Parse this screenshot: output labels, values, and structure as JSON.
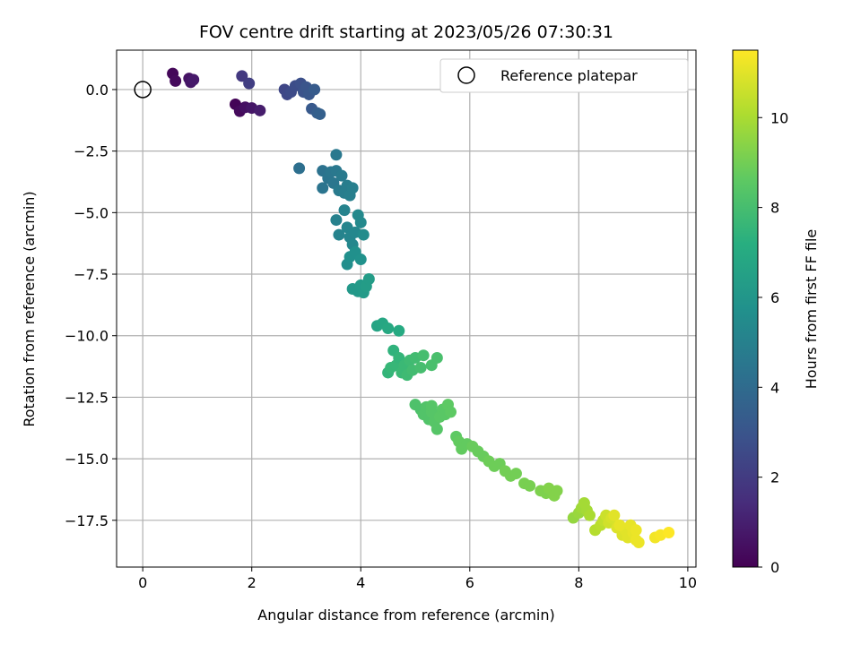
{
  "chart_data": {
    "type": "scatter",
    "title": "FOV centre drift starting at 2023/05/26 07:30:31",
    "xlabel": "Angular distance from reference (arcmin)",
    "ylabel": "Rotation from reference (arcmin)",
    "xlim": [
      -0.48,
      10.15
    ],
    "ylim": [
      -19.4,
      1.6
    ],
    "x_ticks": [
      0,
      2,
      4,
      6,
      8,
      10
    ],
    "x_tick_labels": [
      "0",
      "2",
      "4",
      "6",
      "8",
      "10"
    ],
    "y_ticks": [
      0.0,
      -2.5,
      -5.0,
      -7.5,
      -10.0,
      -12.5,
      -15.0,
      -17.5
    ],
    "y_tick_labels": [
      "0.0",
      "−2.5",
      "−5.0",
      "−7.5",
      "−10.0",
      "−12.5",
      "−15.0",
      "−17.5"
    ],
    "grid": true,
    "colormap": "viridis",
    "colorbar": {
      "label": "Hours from first FF file",
      "range": [
        0,
        11.5
      ],
      "ticks": [
        0,
        2,
        4,
        6,
        8,
        10
      ],
      "tick_labels": [
        "0",
        "2",
        "4",
        "6",
        "8",
        "10"
      ]
    },
    "legend": {
      "position": "top-right",
      "entries": [
        {
          "label": "Reference platepar",
          "marker": "open-circle"
        }
      ]
    },
    "reference_point": {
      "x": 0,
      "y": 0
    },
    "series": [
      {
        "points": [
          [
            0.55,
            0.65,
            0.2
          ],
          [
            0.6,
            0.35,
            0.3
          ],
          [
            0.85,
            0.45,
            0.6
          ],
          [
            0.88,
            0.3,
            0.7
          ],
          [
            0.93,
            0.4,
            0.8
          ],
          [
            1.7,
            -0.6,
            0.1
          ],
          [
            1.78,
            -0.88,
            0.3
          ],
          [
            1.88,
            -0.72,
            0.5
          ],
          [
            2.0,
            -0.75,
            0.7
          ],
          [
            2.15,
            -0.85,
            0.9
          ],
          [
            1.82,
            0.55,
            1.9
          ],
          [
            1.95,
            0.25,
            2.1
          ],
          [
            2.6,
            0.0,
            2.4
          ],
          [
            2.65,
            -0.2,
            2.5
          ],
          [
            2.72,
            -0.1,
            2.6
          ],
          [
            2.8,
            0.15,
            2.7
          ],
          [
            2.9,
            0.25,
            2.8
          ],
          [
            2.95,
            -0.1,
            2.9
          ],
          [
            3.0,
            0.1,
            3.0
          ],
          [
            3.05,
            -0.2,
            3.1
          ],
          [
            3.1,
            -0.78,
            3.2
          ],
          [
            3.15,
            0.0,
            3.3
          ],
          [
            3.2,
            -0.95,
            3.4
          ],
          [
            3.25,
            -1.0,
            3.5
          ],
          [
            2.87,
            -3.2,
            4.2
          ],
          [
            3.3,
            -3.3,
            4.3
          ],
          [
            3.3,
            -4.0,
            4.4
          ],
          [
            3.4,
            -3.6,
            4.4
          ],
          [
            3.45,
            -3.35,
            4.5
          ],
          [
            3.5,
            -3.8,
            4.5
          ],
          [
            3.55,
            -3.3,
            4.6
          ],
          [
            3.55,
            -2.65,
            4.6
          ],
          [
            3.6,
            -4.1,
            4.7
          ],
          [
            3.65,
            -3.5,
            4.7
          ],
          [
            3.7,
            -4.2,
            4.8
          ],
          [
            3.75,
            -3.9,
            4.8
          ],
          [
            3.8,
            -4.3,
            4.9
          ],
          [
            3.85,
            -4.0,
            4.9
          ],
          [
            3.55,
            -5.3,
            5.0
          ],
          [
            3.6,
            -5.9,
            5.1
          ],
          [
            3.7,
            -4.9,
            5.1
          ],
          [
            3.75,
            -5.6,
            5.2
          ],
          [
            3.8,
            -6.0,
            5.2
          ],
          [
            3.85,
            -6.3,
            5.3
          ],
          [
            3.9,
            -5.8,
            5.3
          ],
          [
            3.95,
            -5.1,
            5.4
          ],
          [
            4.0,
            -5.4,
            5.4
          ],
          [
            4.05,
            -5.9,
            5.5
          ],
          [
            3.75,
            -7.1,
            5.6
          ],
          [
            3.8,
            -6.8,
            5.7
          ],
          [
            3.9,
            -6.6,
            5.7
          ],
          [
            4.0,
            -6.9,
            5.8
          ],
          [
            3.85,
            -8.1,
            6.1
          ],
          [
            3.95,
            -8.2,
            6.1
          ],
          [
            4.0,
            -7.95,
            6.2
          ],
          [
            4.05,
            -8.25,
            6.2
          ],
          [
            4.1,
            -8.0,
            6.3
          ],
          [
            4.15,
            -7.7,
            6.3
          ],
          [
            4.3,
            -9.6,
            6.7
          ],
          [
            4.4,
            -9.5,
            6.8
          ],
          [
            4.5,
            -9.7,
            6.9
          ],
          [
            4.7,
            -9.8,
            7.0
          ],
          [
            4.5,
            -11.5,
            7.5
          ],
          [
            4.55,
            -11.3,
            7.6
          ],
          [
            4.6,
            -10.6,
            7.4
          ],
          [
            4.65,
            -11.2,
            7.6
          ],
          [
            4.7,
            -10.9,
            7.5
          ],
          [
            4.75,
            -11.5,
            7.7
          ],
          [
            4.8,
            -11.2,
            7.7
          ],
          [
            4.85,
            -11.6,
            7.8
          ],
          [
            4.9,
            -11.0,
            7.8
          ],
          [
            4.95,
            -11.4,
            7.9
          ],
          [
            5.0,
            -10.9,
            7.9
          ],
          [
            5.1,
            -11.3,
            8.0
          ],
          [
            5.15,
            -10.8,
            8.0
          ],
          [
            5.3,
            -11.2,
            8.1
          ],
          [
            5.4,
            -10.9,
            8.1
          ],
          [
            5.0,
            -12.8,
            8.2
          ],
          [
            5.1,
            -13.0,
            8.2
          ],
          [
            5.15,
            -13.2,
            8.3
          ],
          [
            5.2,
            -12.9,
            8.3
          ],
          [
            5.25,
            -13.4,
            8.3
          ],
          [
            5.3,
            -13.1,
            8.4
          ],
          [
            5.35,
            -13.5,
            8.4
          ],
          [
            5.4,
            -13.8,
            8.4
          ],
          [
            5.45,
            -13.3,
            8.5
          ],
          [
            5.5,
            -13.0,
            8.5
          ],
          [
            5.55,
            -13.2,
            8.5
          ],
          [
            5.6,
            -12.8,
            8.6
          ],
          [
            5.65,
            -13.1,
            8.6
          ],
          [
            5.3,
            -12.85,
            8.4
          ],
          [
            5.75,
            -14.1,
            8.6
          ],
          [
            5.8,
            -14.3,
            8.7
          ],
          [
            5.85,
            -14.6,
            8.7
          ],
          [
            5.95,
            -14.4,
            8.7
          ],
          [
            6.05,
            -14.5,
            8.8
          ],
          [
            6.15,
            -14.7,
            8.8
          ],
          [
            6.25,
            -14.9,
            8.8
          ],
          [
            6.35,
            -15.1,
            8.9
          ],
          [
            6.45,
            -15.3,
            8.9
          ],
          [
            6.55,
            -15.2,
            8.9
          ],
          [
            6.65,
            -15.5,
            9.0
          ],
          [
            6.75,
            -15.7,
            9.0
          ],
          [
            6.85,
            -15.6,
            9.0
          ],
          [
            7.0,
            -16.0,
            9.1
          ],
          [
            7.1,
            -16.1,
            9.1
          ],
          [
            7.3,
            -16.3,
            9.2
          ],
          [
            7.4,
            -16.4,
            9.2
          ],
          [
            7.45,
            -16.2,
            9.3
          ],
          [
            7.55,
            -16.5,
            9.3
          ],
          [
            7.6,
            -16.3,
            9.3
          ],
          [
            7.9,
            -17.4,
            9.6
          ],
          [
            8.0,
            -17.2,
            9.7
          ],
          [
            8.05,
            -17.0,
            9.8
          ],
          [
            8.1,
            -16.8,
            9.9
          ],
          [
            8.15,
            -17.1,
            9.9
          ],
          [
            8.2,
            -17.3,
            10.0
          ],
          [
            8.3,
            -17.9,
            10.2
          ],
          [
            8.4,
            -17.7,
            10.3
          ],
          [
            8.45,
            -17.5,
            10.4
          ],
          [
            8.5,
            -17.3,
            10.6
          ],
          [
            8.55,
            -17.6,
            10.7
          ],
          [
            8.6,
            -17.4,
            10.8
          ],
          [
            8.7,
            -17.8,
            10.9
          ],
          [
            8.8,
            -18.1,
            10.9
          ],
          [
            8.85,
            -17.9,
            11.0
          ],
          [
            8.9,
            -18.2,
            11.0
          ],
          [
            8.95,
            -17.7,
            11.1
          ],
          [
            9.0,
            -18.0,
            11.1
          ],
          [
            9.05,
            -18.3,
            11.2
          ],
          [
            9.1,
            -18.4,
            11.2
          ],
          [
            8.65,
            -17.3,
            11.0
          ],
          [
            8.75,
            -17.7,
            11.1
          ],
          [
            9.05,
            -17.9,
            11.2
          ],
          [
            9.4,
            -18.2,
            11.3
          ],
          [
            9.5,
            -18.1,
            11.4
          ],
          [
            9.65,
            -18.0,
            11.5
          ]
        ]
      }
    ]
  }
}
